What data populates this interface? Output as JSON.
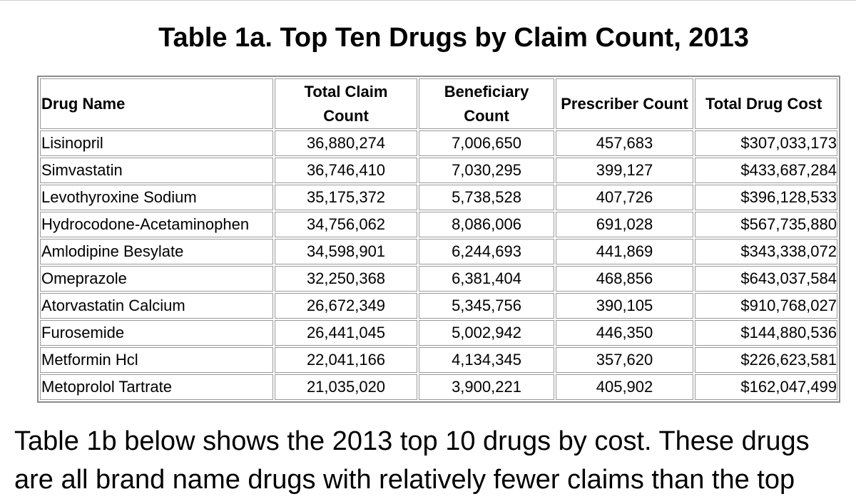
{
  "title": "Table 1a. Top Ten Drugs by Claim Count, 2013",
  "table": {
    "headers": {
      "drug_name": "Drug Name",
      "claim_line1": "Total Claim",
      "claim_line2": "Count",
      "bene_line1": "Beneficiary",
      "bene_line2": "Count",
      "prescriber": "Prescriber Count",
      "cost": "Total Drug Cost"
    },
    "rows": [
      [
        "Lisinopril",
        "36,880,274",
        "7,006,650",
        "457,683",
        "$307,033,173"
      ],
      [
        "Simvastatin",
        "36,746,410",
        "7,030,295",
        "399,127",
        "$433,687,284"
      ],
      [
        "Levothyroxine Sodium",
        "35,175,372",
        "5,738,528",
        "407,726",
        "$396,128,533"
      ],
      [
        "Hydrocodone-Acetaminophen",
        "34,756,062",
        "8,086,006",
        "691,028",
        "$567,735,880"
      ],
      [
        "Amlodipine Besylate",
        "34,598,901",
        "6,244,693",
        "441,869",
        "$343,338,072"
      ],
      [
        "Omeprazole",
        "32,250,368",
        "6,381,404",
        "468,856",
        "$643,037,584"
      ],
      [
        "Atorvastatin Calcium",
        "26,672,349",
        "5,345,756",
        "390,105",
        "$910,768,027"
      ],
      [
        "Furosemide",
        "26,441,045",
        "5,002,942",
        "446,350",
        "$144,880,536"
      ],
      [
        "Metformin Hcl",
        "22,041,166",
        "4,134,345",
        "357,620",
        "$226,623,581"
      ],
      [
        "Metoprolol Tartrate",
        "21,035,020",
        "3,900,221",
        "405,902",
        "$162,047,499"
      ]
    ]
  },
  "paragraph": {
    "line1": "Table 1b below shows the 2013 top 10 drugs by cost. These drugs",
    "line2": "are all brand name drugs with relatively fewer claims than the top"
  }
}
